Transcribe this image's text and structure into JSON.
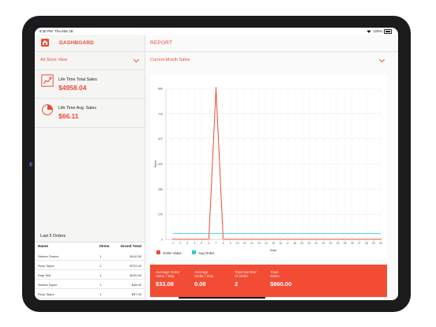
{
  "status": {
    "time": "6:30 PM",
    "date": "Thu Mar 26",
    "battery": "100%"
  },
  "sidebar": {
    "title": "DASHBOARD",
    "store_view": "All Store View",
    "cards": [
      {
        "label": "Life Time Total Sales",
        "value": "$4958.04",
        "icon": "line-chart-icon"
      },
      {
        "label": "Life Time Avg. Sales",
        "value": "$66.11",
        "icon": "pie-chart-icon"
      }
    ]
  },
  "orders": {
    "title": "Last 5 Orders",
    "columns": [
      "Name",
      "Items",
      "Grand Total"
    ],
    "rows": [
      {
        "name": "Selena Gomez",
        "items": "1",
        "total": "$410.00"
      },
      {
        "name": "Roxy Taylor",
        "items": "1",
        "total": "$722.00"
      },
      {
        "name": "Kaja Test",
        "items": "1",
        "total": "$100.00"
      },
      {
        "name": "Selena Taylor",
        "items": "1",
        "total": "$48.00"
      },
      {
        "name": "Roxy Taylor",
        "items": "1",
        "total": "$57.00"
      }
    ]
  },
  "report": {
    "title": "REPORT",
    "range": "Current Month Sales"
  },
  "chart_data": {
    "type": "line",
    "xlabel": "Days",
    "ylabel": "Sales",
    "x": [
      1,
      2,
      3,
      4,
      5,
      6,
      7,
      8,
      9,
      10,
      11,
      12,
      13,
      14,
      15,
      16,
      17,
      18,
      19,
      20,
      21,
      22,
      23,
      24,
      25,
      26,
      27,
      28,
      29,
      30
    ],
    "yticks": [
      "0",
      "143",
      "286",
      "429",
      "572",
      "715",
      "858"
    ],
    "ylim": [
      0,
      858
    ],
    "grid": true,
    "series": [
      {
        "name": "Order Value",
        "color": "#e84c36",
        "values": [
          0,
          0,
          0,
          0,
          0,
          0,
          860,
          0,
          0,
          0,
          0,
          0,
          0,
          0,
          0,
          0,
          0,
          0,
          0,
          0,
          0,
          0,
          0,
          0,
          0,
          0,
          0,
          0,
          0,
          0
        ]
      },
      {
        "name": "Avg Order",
        "color": "#35c8d8",
        "values": [
          33,
          33,
          33,
          33,
          33,
          33,
          33,
          33,
          33,
          33,
          33,
          33,
          33,
          33,
          33,
          33,
          33,
          33,
          33,
          33,
          33,
          33,
          33,
          33,
          33,
          33,
          33,
          33,
          33,
          33
        ]
      }
    ]
  },
  "stats": [
    {
      "label": "Average Order\nValue / Day",
      "value": "$33.08"
    },
    {
      "label": "Average\nOrder / Day",
      "value": "0.08"
    },
    {
      "label": "Total Number\nof Order",
      "value": "2"
    },
    {
      "label": "Total\nSales",
      "value": "$860.00"
    }
  ]
}
